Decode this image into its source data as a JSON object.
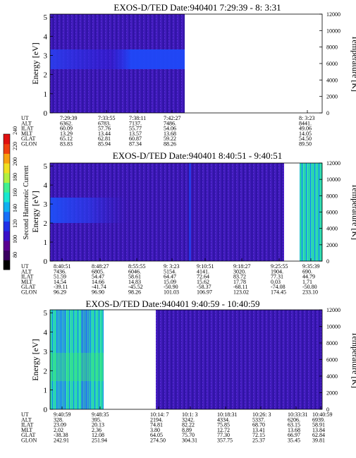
{
  "colorbar": {
    "label": "Second Harmonic Current",
    "ticks": [
      "240",
      "220",
      "200",
      "180",
      "160",
      "140",
      "120",
      "100",
      "80"
    ],
    "colors": [
      "#000000",
      "#3a0060",
      "#5a0090",
      "#3a10c8",
      "#2030e8",
      "#1870f8",
      "#10b0f0",
      "#18e8d0",
      "#40f090",
      "#b0f040",
      "#f0e020",
      "#f8a010",
      "#f04010",
      "#e01010"
    ]
  },
  "panels": [
    {
      "title": "EXOS-D/TED   Date:940401   7:29:39 - 8: 3:31",
      "ylabel": "Energy [eV]",
      "rlabel": "Temperature [K]",
      "yticks": [
        "0",
        "1",
        "2",
        "3",
        "4",
        "5"
      ],
      "rticks": [
        "0",
        "2000",
        "4000",
        "6000",
        "8000",
        "10000",
        "12000"
      ],
      "rows": [
        {
          "name": "UT",
          "values": [
            "7:29:39",
            "7:33:55",
            "7:38:11",
            "7:42:27",
            "8: 3:23"
          ]
        },
        {
          "name": "ALT",
          "values": [
            "6362.",
            "6783.",
            "7137.",
            "7486.",
            "8441."
          ]
        },
        {
          "name": "ILAT",
          "values": [
            "60.09",
            "57.76",
            "55.77",
            "54.06",
            "49.06"
          ]
        },
        {
          "name": "MLT",
          "values": [
            "13.29",
            "13.44",
            "13.57",
            "13.68",
            "14.05"
          ]
        },
        {
          "name": "GLAT",
          "values": [
            "65.12",
            "62.81",
            "60.87",
            "59.22",
            "54.50"
          ]
        },
        {
          "name": "GLON",
          "values": [
            "83.83",
            "85.94",
            "87.34",
            "88.26",
            "89.50"
          ]
        }
      ]
    },
    {
      "title": "EXOS-D/TED   Date:940401   8:40:51 - 9:40:51",
      "ylabel": "Energy [eV]",
      "rlabel": "Temperature [K]",
      "yticks": [
        "0",
        "1",
        "2",
        "3",
        "4",
        "5"
      ],
      "rticks": [
        "0",
        "2000",
        "4000",
        "6000",
        "8000",
        "10000",
        "12000"
      ],
      "rows": [
        {
          "name": "UT",
          "values": [
            "8:40:51",
            "8:48:27",
            "8:55:55",
            "9: 3:23",
            "9:10:51",
            "9:18:27",
            "9:25:55",
            "9:35:39"
          ]
        },
        {
          "name": "ALT",
          "values": [
            "7436.",
            "6805.",
            "6046.",
            "5154.",
            "4141.",
            "3020.",
            "1904.",
            "690."
          ]
        },
        {
          "name": "ILAT",
          "values": [
            "51.59",
            "54.47",
            "58.61",
            "64.47",
            "72.64",
            "83.72",
            "77.31",
            "44.79"
          ]
        },
        {
          "name": "MLT",
          "values": [
            "14.54",
            "14.66",
            "14.83",
            "15.09",
            "15.62",
            "17.78",
            "0.03",
            "1.71"
          ]
        },
        {
          "name": "GLAT",
          "values": [
            "-39.11",
            "-41.74",
            "-45.52",
            "-50.90",
            "-58.37",
            "-68.11",
            "-74.08",
            "-50.80"
          ]
        },
        {
          "name": "GLON",
          "values": [
            "96.29",
            "96.90",
            "98.26",
            "101.03",
            "106.97",
            "123.02",
            "174.45",
            "233.10"
          ]
        }
      ]
    },
    {
      "title": "EXOS-D/TED   Date:940401   9:40:59 - 10:40:59",
      "ylabel": "Energy [eV]",
      "rlabel": "Temperature [K]",
      "yticks": [
        "0",
        "1",
        "2",
        "3",
        "4",
        "5"
      ],
      "rticks": [
        "0",
        "2000",
        "4000",
        "6000",
        "8000",
        "10000",
        "12000"
      ],
      "rows": [
        {
          "name": "UT",
          "values": [
            "9:40:59",
            "9:48:35",
            "10:14: 7",
            "10:1: 3",
            "10:18:31",
            "10:26: 3",
            "10:33:31",
            "10:40:59"
          ]
        },
        {
          "name": "ALT",
          "values": [
            "328.",
            "395.",
            "2194.",
            "3242.",
            "4334.",
            "5337.",
            "6206.",
            "6939."
          ]
        },
        {
          "name": "ILAT",
          "values": [
            "23.09",
            "20.13",
            "74.81",
            "82.22",
            "75.85",
            "68.70",
            "63.15",
            "58.91"
          ]
        },
        {
          "name": "MLT",
          "values": [
            "2.02",
            "2.36",
            "3.80",
            "8.89",
            "12.72",
            "13.41",
            "13.68",
            "13.84"
          ]
        },
        {
          "name": "GLAT",
          "values": [
            "-38.38",
            "12.08",
            "64.05",
            "75.70",
            "77.30",
            "72.15",
            "66.97",
            "62.84"
          ]
        },
        {
          "name": "GLON",
          "values": [
            "242.91",
            "251.94",
            "274.50",
            "304.31",
            "357.75",
            "25.37",
            "35.45",
            "39.81"
          ]
        }
      ]
    }
  ],
  "chart_data": [
    {
      "type": "heatmap",
      "title": "EXOS-D/TED   Date:940401   7:29:39 - 8: 3:31",
      "ylabel": "Energy [eV]",
      "ylim": [
        0,
        5
      ],
      "y2label": "Temperature [K]",
      "y2lim": [
        0,
        12000
      ],
      "x": [
        "7:29:39",
        "7:33:55",
        "7:38:11",
        "7:42:27",
        "8: 3:23"
      ],
      "coverage": [
        [
          0.0,
          0.5
        ]
      ],
      "note_bands": [
        {
          "energy_center": 2.8,
          "energy_halfwidth": 0.35,
          "from": 0.0,
          "to": 0.5,
          "level": "enhanced"
        }
      ]
    },
    {
      "type": "heatmap",
      "title": "EXOS-D/TED   Date:940401   8:40:51 - 9:40:51",
      "ylabel": "Energy [eV]",
      "ylim": [
        0,
        5
      ],
      "y2label": "Temperature [K]",
      "y2lim": [
        0,
        12000
      ],
      "x": [
        "8:40:51",
        "8:48:27",
        "8:55:55",
        "9: 3:23",
        "9:10:51",
        "9:18:27",
        "9:25:55",
        "9:35:39"
      ],
      "coverage": [
        [
          0.0,
          0.86
        ],
        [
          0.896,
          1.0
        ]
      ]
    },
    {
      "type": "heatmap",
      "title": "EXOS-D/TED   Date:940401   9:40:59 - 10:40:59",
      "ylabel": "Energy [eV]",
      "ylim": [
        0,
        5
      ],
      "y2label": "Temperature [K]",
      "y2lim": [
        0,
        12000
      ],
      "x": [
        "9:40:59",
        "9:48:35",
        "10:14: 7",
        "10:1: 3",
        "10:18:31",
        "10:26: 3",
        "10:33:31",
        "10:40:59"
      ],
      "coverage": [
        [
          0.0,
          0.215
        ],
        [
          0.426,
          1.0
        ]
      ]
    }
  ]
}
